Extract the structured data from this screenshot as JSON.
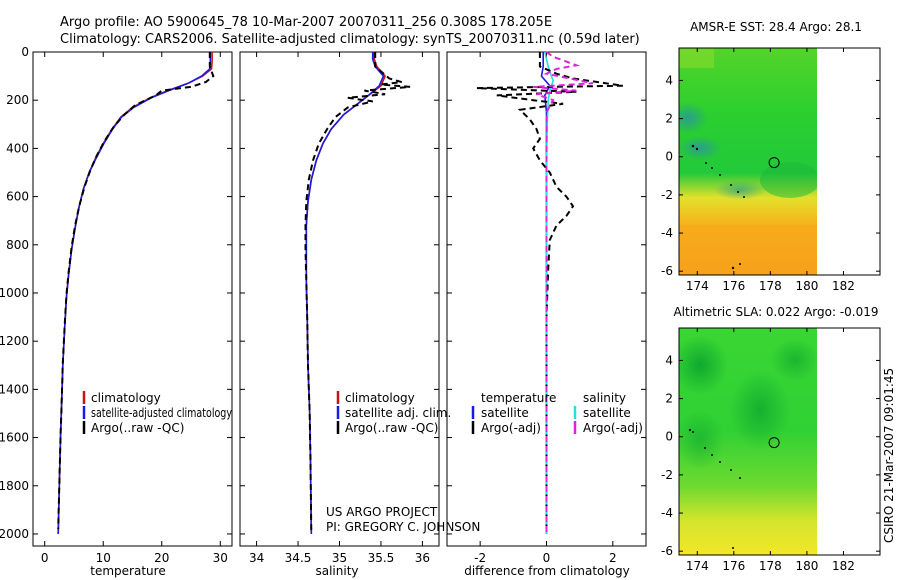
{
  "title": {
    "line1": "Argo profile: AO 5900645_78 10-Mar-2007 20070311_256 0.308S 178.205E",
    "line2": "Climatology: CARS2006. Satellite-adjusted climatology: synTS_20070311.nc (0.59d later)"
  },
  "footer": {
    "project": "US ARGO PROJECT",
    "pi": "PI: GREGORY C. JOHNSON",
    "stamp": "CSIRO 21-Mar-2007 09:01:45"
  },
  "colors": {
    "climatology": "#d01010",
    "satellite": "#1a1ae6",
    "argo": "#000000",
    "sat_salinity": "#20e0e0",
    "argo_salinity": "#e020e0",
    "map_ocean_green": "#1ecf2a",
    "map_warm_yellow": "#f2e62a",
    "map_orange": "#f7a21a"
  },
  "chart_data": [
    {
      "id": "temperature",
      "type": "line",
      "xlabel": "temperature",
      "ylabel": "",
      "xlim": [
        -2,
        32
      ],
      "ylim": [
        2050,
        0
      ],
      "xticks": [
        0,
        10,
        20,
        30
      ],
      "yticks": [
        0,
        200,
        400,
        600,
        800,
        1000,
        1200,
        1400,
        1600,
        1800,
        2000
      ],
      "legend": [
        "climatology",
        "satellite-adjusted climatology",
        "Argo(..raw -QC)"
      ],
      "series": [
        {
          "key": "climatology",
          "color": "#d01010",
          "dash": "",
          "points": [
            [
              28.6,
              0
            ],
            [
              28.6,
              40
            ],
            [
              28.5,
              70
            ],
            [
              27.0,
              100
            ],
            [
              24.5,
              130
            ],
            [
              21.0,
              160
            ],
            [
              18.0,
              190
            ],
            [
              15.0,
              230
            ],
            [
              13.0,
              270
            ],
            [
              11.5,
              320
            ],
            [
              10.0,
              380
            ],
            [
              8.7,
              440
            ],
            [
              7.6,
              500
            ],
            [
              6.6,
              570
            ],
            [
              5.8,
              650
            ],
            [
              5.2,
              730
            ],
            [
              4.6,
              820
            ],
            [
              4.1,
              920
            ],
            [
              3.7,
              1020
            ],
            [
              3.4,
              1150
            ],
            [
              3.1,
              1300
            ],
            [
              2.9,
              1450
            ],
            [
              2.7,
              1600
            ],
            [
              2.5,
              1800
            ],
            [
              2.3,
              2000
            ]
          ]
        },
        {
          "key": "satellite",
          "color": "#1a1ae6",
          "dash": "",
          "points": [
            [
              28.3,
              0
            ],
            [
              28.3,
              40
            ],
            [
              28.2,
              70
            ],
            [
              26.8,
              100
            ],
            [
              24.5,
              130
            ],
            [
              21.2,
              160
            ],
            [
              18.2,
              190
            ],
            [
              15.2,
              230
            ],
            [
              13.1,
              270
            ],
            [
              11.6,
              320
            ],
            [
              10.1,
              380
            ],
            [
              8.8,
              440
            ],
            [
              7.6,
              500
            ],
            [
              6.6,
              570
            ],
            [
              5.8,
              650
            ],
            [
              5.2,
              730
            ],
            [
              4.6,
              820
            ],
            [
              4.1,
              920
            ],
            [
              3.7,
              1020
            ],
            [
              3.4,
              1150
            ],
            [
              3.1,
              1300
            ],
            [
              2.9,
              1450
            ],
            [
              2.7,
              1600
            ],
            [
              2.5,
              1800
            ],
            [
              2.3,
              2000
            ]
          ]
        },
        {
          "key": "argo",
          "color": "#000000",
          "dash": "6,4",
          "points": [
            [
              28.2,
              0
            ],
            [
              28.2,
              60
            ],
            [
              28.8,
              100
            ],
            [
              27.5,
              125
            ],
            [
              25.0,
              145
            ],
            [
              20.0,
              160
            ],
            [
              19.0,
              180
            ],
            [
              15.5,
              220
            ],
            [
              13.6,
              260
            ],
            [
              11.8,
              310
            ],
            [
              10.2,
              370
            ],
            [
              8.9,
              430
            ],
            [
              7.8,
              490
            ],
            [
              6.8,
              560
            ],
            [
              5.9,
              640
            ],
            [
              5.2,
              720
            ],
            [
              4.6,
              810
            ],
            [
              4.1,
              910
            ],
            [
              3.7,
              1010
            ],
            [
              3.4,
              1140
            ],
            [
              3.1,
              1290
            ],
            [
              2.9,
              1450
            ],
            [
              2.7,
              1600
            ],
            [
              2.5,
              1800
            ],
            [
              2.3,
              1980
            ]
          ]
        }
      ]
    },
    {
      "id": "salinity",
      "type": "line",
      "xlabel": "salinity",
      "ylabel": "",
      "xlim": [
        33.8,
        36.2
      ],
      "ylim": [
        2050,
        0
      ],
      "xticks": [
        34,
        34.5,
        35,
        35.5,
        36
      ],
      "yticks": [],
      "legend": [
        "climatology",
        "satellite adj. clim.",
        "Argo(..raw -QC)"
      ],
      "series": [
        {
          "key": "climatology",
          "color": "#d01010",
          "dash": "",
          "points": [
            [
              35.42,
              0
            ],
            [
              35.42,
              30
            ],
            [
              35.45,
              60
            ],
            [
              35.55,
              100
            ],
            [
              35.5,
              140
            ],
            [
              35.35,
              180
            ],
            [
              35.2,
              220
            ],
            [
              35.05,
              260
            ],
            [
              34.9,
              320
            ],
            [
              34.8,
              380
            ],
            [
              34.72,
              450
            ],
            [
              34.66,
              530
            ],
            [
              34.62,
              620
            ],
            [
              34.6,
              720
            ],
            [
              34.6,
              820
            ],
            [
              34.6,
              950
            ],
            [
              34.61,
              1100
            ],
            [
              34.62,
              1300
            ],
            [
              34.64,
              1500
            ],
            [
              34.65,
              1700
            ],
            [
              34.66,
              2000
            ]
          ]
        },
        {
          "key": "satellite",
          "color": "#1a1ae6",
          "dash": "",
          "points": [
            [
              35.4,
              0
            ],
            [
              35.4,
              30
            ],
            [
              35.43,
              60
            ],
            [
              35.53,
              100
            ],
            [
              35.48,
              140
            ],
            [
              35.35,
              180
            ],
            [
              35.2,
              220
            ],
            [
              35.05,
              260
            ],
            [
              34.9,
              320
            ],
            [
              34.8,
              380
            ],
            [
              34.72,
              450
            ],
            [
              34.66,
              530
            ],
            [
              34.62,
              620
            ],
            [
              34.6,
              720
            ],
            [
              34.6,
              820
            ],
            [
              34.6,
              950
            ],
            [
              34.61,
              1100
            ],
            [
              34.62,
              1300
            ],
            [
              34.64,
              1500
            ],
            [
              34.65,
              1700
            ],
            [
              34.66,
              2000
            ]
          ]
        },
        {
          "key": "argo",
          "color": "#000000",
          "dash": "6,4",
          "points": [
            [
              35.43,
              0
            ],
            [
              35.43,
              60
            ],
            [
              35.6,
              110
            ],
            [
              35.75,
              125
            ],
            [
              35.5,
              135
            ],
            [
              35.85,
              145
            ],
            [
              35.3,
              160
            ],
            [
              35.55,
              175
            ],
            [
              35.1,
              190
            ],
            [
              35.4,
              205
            ],
            [
              35.1,
              230
            ],
            [
              34.95,
              270
            ],
            [
              34.85,
              320
            ],
            [
              34.75,
              380
            ],
            [
              34.68,
              450
            ],
            [
              34.63,
              530
            ],
            [
              34.6,
              620
            ],
            [
              34.59,
              720
            ],
            [
              34.59,
              820
            ],
            [
              34.6,
              950
            ],
            [
              34.61,
              1100
            ],
            [
              34.62,
              1300
            ],
            [
              34.64,
              1500
            ],
            [
              34.65,
              1700
            ],
            [
              34.66,
              2000
            ]
          ]
        }
      ]
    },
    {
      "id": "difference",
      "type": "line",
      "xlabel": "difference from climatology",
      "ylabel": "",
      "xlim": [
        -3,
        3
      ],
      "ylim": [
        2050,
        0
      ],
      "xticks": [
        -2,
        0,
        2
      ],
      "yticks": [],
      "legend_temperature_header": "temperature",
      "legend_salinity_header": "salinity",
      "legend": [
        "satellite",
        "Argo(-adj)",
        "satellite",
        "Argo(-adj)"
      ],
      "series": [
        {
          "key": "temp_satellite",
          "color": "#1a1ae6",
          "dash": "",
          "points": [
            [
              -0.1,
              0
            ],
            [
              -0.1,
              60
            ],
            [
              -0.15,
              100
            ],
            [
              0.1,
              140
            ],
            [
              -0.05,
              180
            ],
            [
              0.0,
              250
            ],
            [
              0.0,
              400
            ],
            [
              0.0,
              1000
            ],
            [
              0.0,
              2000
            ]
          ]
        },
        {
          "key": "sal_satellite",
          "color": "#20e0e0",
          "dash": "",
          "points": [
            [
              -0.05,
              0
            ],
            [
              0.05,
              60
            ],
            [
              0.2,
              120
            ],
            [
              0.1,
              160
            ],
            [
              0.05,
              200
            ],
            [
              0.02,
              300
            ],
            [
              0.0,
              500
            ],
            [
              0.0,
              1000
            ],
            [
              0.0,
              2000
            ]
          ]
        },
        {
          "key": "temp_argo",
          "color": "#000000",
          "dash": "6,4",
          "points": [
            [
              -0.2,
              0
            ],
            [
              -0.2,
              60
            ],
            [
              0.3,
              90
            ],
            [
              0.8,
              110
            ],
            [
              2.3,
              140
            ],
            [
              -2.1,
              150
            ],
            [
              0.9,
              165
            ],
            [
              -1.5,
              180
            ],
            [
              -0.4,
              200
            ],
            [
              0.5,
              215
            ],
            [
              -0.8,
              240
            ],
            [
              -0.5,
              280
            ],
            [
              -0.3,
              320
            ],
            [
              -0.2,
              360
            ],
            [
              -0.4,
              400
            ],
            [
              -0.2,
              450
            ],
            [
              0.1,
              500
            ],
            [
              0.3,
              560
            ],
            [
              0.6,
              600
            ],
            [
              0.8,
              640
            ],
            [
              0.6,
              680
            ],
            [
              0.3,
              720
            ],
            [
              0.1,
              780
            ],
            [
              0.05,
              900
            ],
            [
              0.0,
              1100
            ],
            [
              0.0,
              1400
            ],
            [
              0.0,
              2000
            ]
          ]
        },
        {
          "key": "sal_argo",
          "color": "#e020e0",
          "dash": "6,4",
          "points": [
            [
              0.0,
              0
            ],
            [
              0.2,
              20
            ],
            [
              0.6,
              40
            ],
            [
              0.9,
              55
            ],
            [
              0.3,
              70
            ],
            [
              0.0,
              90
            ],
            [
              1.4,
              130
            ],
            [
              -0.4,
              145
            ],
            [
              0.9,
              160
            ],
            [
              -0.3,
              175
            ],
            [
              0.2,
              200
            ],
            [
              0.0,
              250
            ],
            [
              0.0,
              400
            ],
            [
              0.0,
              1000
            ],
            [
              0.0,
              2000
            ]
          ]
        }
      ]
    },
    {
      "id": "sst_map",
      "type": "heatmap",
      "title": "AMSR-E SST: 28.4  Argo: 28.1",
      "xlim": [
        173,
        184
      ],
      "ylim": [
        -6.2,
        5.7
      ],
      "xticks": [
        174,
        176,
        178,
        180,
        182
      ],
      "yticks": [
        -6,
        -4,
        -2,
        0,
        2,
        4
      ],
      "data_extent_x": [
        173,
        180.2
      ],
      "marker": [
        178.205,
        -0.308
      ]
    },
    {
      "id": "sla_map",
      "type": "heatmap",
      "title": "Altimetric SLA: 0.022  Argo: -0.019",
      "xlim": [
        173,
        184
      ],
      "ylim": [
        -6.2,
        5.7
      ],
      "xticks": [
        174,
        176,
        178,
        180,
        182
      ],
      "yticks": [
        -6,
        -4,
        -2,
        0,
        2,
        4
      ],
      "data_extent_x": [
        173,
        180.2
      ],
      "marker": [
        178.205,
        -0.308
      ]
    }
  ]
}
